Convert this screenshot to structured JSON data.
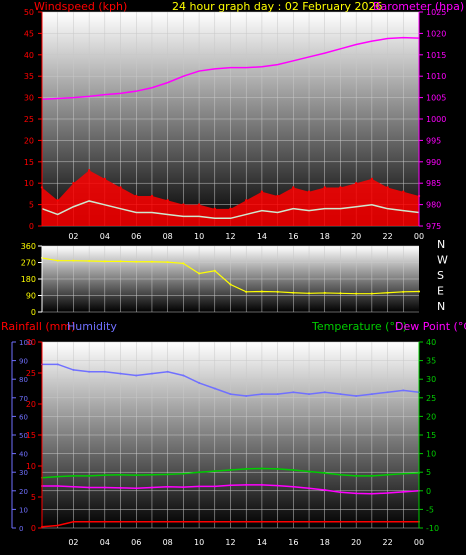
{
  "header": {
    "title": "24 hour graph day : 02 February 2026",
    "left_label": "Windspeed (kph)",
    "right_label": "Barometer (hpa)"
  },
  "colors": {
    "wind": "#ff0000",
    "gust_fill": "#ff0000",
    "avg": "#cfe8cf",
    "barometer": "#ff00ff",
    "direction": "#ffff00",
    "rain": "#ff0000",
    "humidity": "#7070ff",
    "temperature": "#00cc00",
    "dewpoint": "#ff00ff",
    "title": "#ffff00",
    "tick": "#ffffff",
    "grid": "#c8c8c8"
  },
  "x_labels": [
    "02",
    "04",
    "06",
    "08",
    "10",
    "12",
    "14",
    "16",
    "18",
    "20",
    "22",
    "00"
  ],
  "chart_data": [
    {
      "type": "line",
      "panel": "wind-barometer",
      "title": "24 hour graph day : 02 February 2026",
      "ylabel_left": "Windspeed (kph)",
      "ylabel_right": "Barometer (hpa)",
      "ylim_left": [
        0,
        50
      ],
      "ylim_right": [
        975,
        1025
      ],
      "yticks_left": [
        "0",
        "5",
        "10",
        "15",
        "20",
        "25",
        "30",
        "35",
        "40",
        "45",
        "50"
      ],
      "yticks_right": [
        "975",
        "980",
        "985",
        "990",
        "995",
        "1000",
        "1005",
        "1010",
        "1015",
        "1020",
        "1025"
      ],
      "x": [
        0,
        1,
        2,
        3,
        4,
        5,
        6,
        7,
        8,
        9,
        10,
        11,
        12,
        13,
        14,
        15,
        16,
        17,
        18,
        19,
        20,
        21,
        22,
        23,
        24
      ],
      "series": [
        {
          "name": "Windspeed (kph)",
          "axis": "left",
          "values": [
            9,
            6,
            10,
            13,
            11,
            9,
            7,
            7,
            6,
            5,
            5,
            4,
            4,
            6,
            8,
            7,
            9,
            8,
            9,
            9,
            10,
            11,
            9,
            8,
            7
          ]
        },
        {
          "name": "Barometer (hpa)",
          "axis": "right",
          "values": [
            1004.6,
            1004.8,
            1005.0,
            1005.3,
            1005.7,
            1006.0,
            1006.5,
            1007.3,
            1008.5,
            1010.0,
            1011.2,
            1011.7,
            1012.0,
            1012.0,
            1012.2,
            1012.7,
            1013.6,
            1014.5,
            1015.4,
            1016.4,
            1017.4,
            1018.2,
            1018.8,
            1019.0,
            1018.9
          ]
        }
      ]
    },
    {
      "type": "line",
      "panel": "wind-direction",
      "ylim": [
        0,
        360
      ],
      "yticks": [
        "0",
        "90",
        "180",
        "270",
        "360"
      ],
      "compass_labels": [
        "N",
        "W",
        "S",
        "E",
        "N"
      ],
      "x": [
        0,
        1,
        2,
        3,
        4,
        5,
        6,
        7,
        8,
        9,
        10,
        11,
        12,
        13,
        14,
        15,
        16,
        17,
        18,
        19,
        20,
        21,
        22,
        23,
        24
      ],
      "series": [
        {
          "name": "Wind direction",
          "values": [
            295,
            280,
            280,
            278,
            276,
            276,
            274,
            274,
            272,
            265,
            210,
            225,
            150,
            110,
            112,
            110,
            105,
            102,
            104,
            102,
            100,
            100,
            105,
            110,
            112
          ]
        }
      ]
    },
    {
      "type": "line",
      "panel": "rain-humidity-temperature",
      "ylabel_left_1": "Rainfall (mm)",
      "ylabel_left_2": "Humidity",
      "ylabel_right_1": "Temperature (°C)",
      "ylabel_right_2": "Dew Point (°C)",
      "ylim_humidity": [
        0,
        100
      ],
      "ylim_rain": [
        0,
        30
      ],
      "ylim_temp": [
        -10,
        40
      ],
      "yticks_humidity": [
        "0",
        "10",
        "20",
        "30",
        "40",
        "50",
        "60",
        "70",
        "80",
        "90",
        "100"
      ],
      "yticks_rain": [
        "0",
        "5",
        "10",
        "15",
        "20",
        "25",
        "30"
      ],
      "yticks_temp": [
        "-10",
        "-5",
        "0",
        "5",
        "10",
        "15",
        "20",
        "25",
        "30",
        "35",
        "40"
      ],
      "x": [
        0,
        1,
        2,
        3,
        4,
        5,
        6,
        7,
        8,
        9,
        10,
        11,
        12,
        13,
        14,
        15,
        16,
        17,
        18,
        19,
        20,
        21,
        22,
        23,
        24
      ],
      "series": [
        {
          "name": "Humidity",
          "axis": "humidity",
          "values": [
            88,
            88,
            85,
            84,
            84,
            83,
            82,
            83,
            84,
            82,
            78,
            75,
            72,
            71,
            72,
            72,
            73,
            72,
            73,
            72,
            71,
            72,
            73,
            74,
            73
          ]
        },
        {
          "name": "Temperature (°C)",
          "axis": "temp",
          "values": [
            3.5,
            3.8,
            4.0,
            4.0,
            4.2,
            4.3,
            4.2,
            4.3,
            4.4,
            4.6,
            5.0,
            5.3,
            5.6,
            5.9,
            6.0,
            5.9,
            5.6,
            5.2,
            4.8,
            4.3,
            4.0,
            4.0,
            4.3,
            4.6,
            4.8
          ]
        },
        {
          "name": "Dew Point (°C)",
          "axis": "temp",
          "values": [
            1.3,
            1.3,
            1.1,
            0.9,
            0.9,
            0.8,
            0.7,
            0.9,
            1.1,
            1.0,
            1.2,
            1.2,
            1.5,
            1.6,
            1.6,
            1.4,
            1.1,
            0.7,
            0.2,
            -0.4,
            -0.7,
            -0.8,
            -0.6,
            -0.3,
            0.0
          ]
        },
        {
          "name": "Rainfall (mm)",
          "axis": "rain",
          "values": [
            0.2,
            0.4,
            1.0,
            1.0,
            1.0,
            1.0,
            1.0,
            1.0,
            1.0,
            1.0,
            1.0,
            1.0,
            1.0,
            1.0,
            1.0,
            1.0,
            1.0,
            1.0,
            1.0,
            1.0,
            1.0,
            1.0,
            1.0,
            1.0,
            1.0
          ]
        }
      ]
    }
  ]
}
